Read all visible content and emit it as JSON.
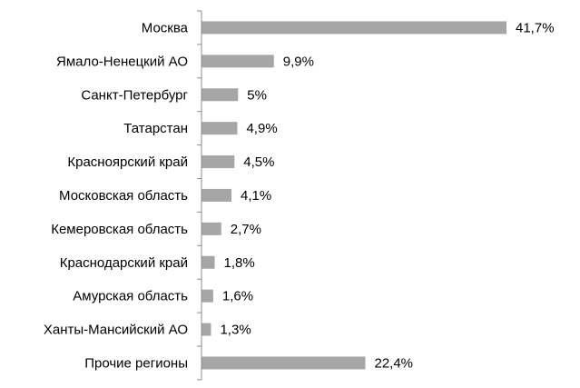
{
  "chart_data": {
    "type": "bar",
    "orientation": "horizontal",
    "categories": [
      "Москва",
      "Ямало-Ненецкий АО",
      "Санкт-Петербург",
      "Татарстан",
      "Красноярский край",
      "Московская область",
      "Кемеровская область",
      "Краснодарский край",
      "Амурская область",
      "Ханты-Мансийский АО",
      "Прочие регионы"
    ],
    "values": [
      41.7,
      9.9,
      5,
      4.9,
      4.5,
      4.1,
      2.7,
      1.8,
      1.6,
      1.3,
      22.4
    ],
    "value_labels": [
      "41,7%",
      "9,9%",
      "5%",
      "4,9%",
      "4,5%",
      "4,1%",
      "2,7%",
      "1,8%",
      "1,6%",
      "1,3%",
      "22,4%"
    ],
    "xlim": [
      0,
      41.7
    ],
    "grid": false,
    "legend": "none",
    "bar_color": "#a6a6a6",
    "axis_color": "#8c8c8c"
  }
}
